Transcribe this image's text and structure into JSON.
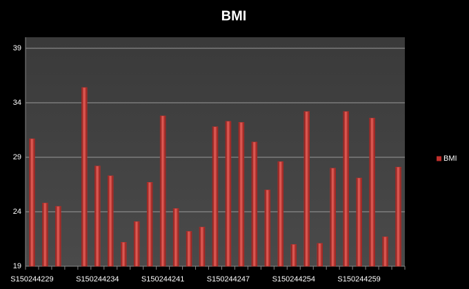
{
  "chart_data": {
    "type": "bar",
    "title": "BMI",
    "categories": [
      "S150244229",
      null,
      null,
      null,
      null,
      "S150244234",
      null,
      null,
      null,
      null,
      "S150244241",
      null,
      null,
      null,
      null,
      "S150244247",
      null,
      null,
      null,
      null,
      "S150244254",
      null,
      null,
      null,
      null,
      "S150244259",
      null,
      null,
      null
    ],
    "series": [
      {
        "name": "BMI",
        "color": "#c0302c",
        "values": [
          30.7,
          24.8,
          24.5,
          null,
          35.4,
          28.2,
          27.3,
          21.2,
          23.1,
          26.7,
          32.8,
          24.3,
          22.2,
          22.6,
          31.8,
          32.3,
          32.2,
          30.4,
          26.0,
          28.6,
          21.0,
          33.2,
          21.1,
          28.0,
          33.2,
          27.1,
          32.6,
          21.7,
          28.1
        ]
      }
    ],
    "ylim": [
      19,
      39
    ],
    "yticks": [
      19,
      24,
      29,
      34,
      39
    ],
    "grid": true,
    "legend": "right"
  }
}
